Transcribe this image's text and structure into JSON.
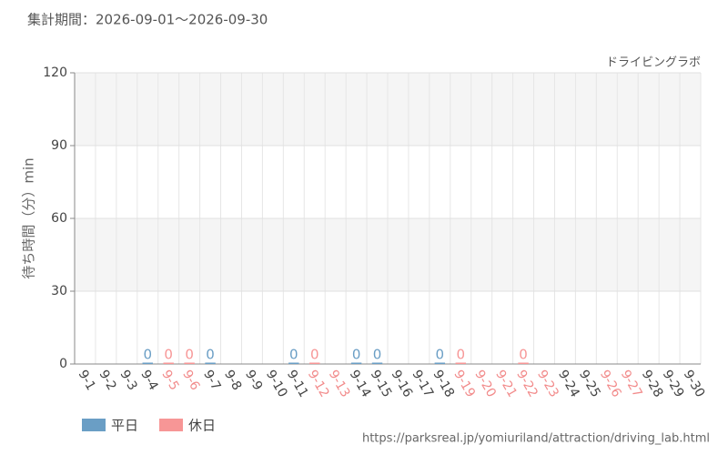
{
  "chart_data": {
    "type": "bar",
    "title": "集計期間：2026-09-01～2026-09-30",
    "subtitle": "ドライビングラボ",
    "y_label": "待ち時間（分）min",
    "source": "https://parksreal.jp/yomiuriland/attraction/driving_lab.html",
    "categories": [
      "9-1",
      "9-2",
      "9-3",
      "9-4",
      "9-5",
      "9-6",
      "9-7",
      "9-8",
      "9-9",
      "9-10",
      "9-11",
      "9-12",
      "9-13",
      "9-14",
      "9-15",
      "9-16",
      "9-17",
      "9-18",
      "9-19",
      "9-20",
      "9-21",
      "9-22",
      "9-23",
      "9-24",
      "9-25",
      "9-26",
      "9-27",
      "9-28",
      "9-29",
      "9-30"
    ],
    "label_colors": [
      "#444",
      "#444",
      "#444",
      "#444",
      "#f28b8b",
      "#f28b8b",
      "#444",
      "#444",
      "#444",
      "#444",
      "#444",
      "#f28b8b",
      "#f28b8b",
      "#444",
      "#444",
      "#444",
      "#444",
      "#444",
      "#f28b8b",
      "#f28b8b",
      "#f28b8b",
      "#f28b8b",
      "#f28b8b",
      "#444",
      "#444",
      "#f28b8b",
      "#f28b8b",
      "#444",
      "#444",
      "#444"
    ],
    "series": [
      {
        "name": "平日",
        "color": "#6a9ec5",
        "values": [
          null,
          null,
          null,
          0,
          null,
          null,
          0,
          null,
          null,
          null,
          0,
          null,
          null,
          0,
          0,
          null,
          null,
          0,
          null,
          null,
          null,
          null,
          null,
          null,
          null,
          null,
          null,
          null,
          null,
          null
        ]
      },
      {
        "name": "休日",
        "color": "#f79696",
        "values": [
          null,
          null,
          null,
          null,
          0,
          0,
          null,
          null,
          null,
          null,
          null,
          0,
          null,
          null,
          null,
          null,
          null,
          null,
          0,
          null,
          null,
          0,
          null,
          null,
          null,
          null,
          null,
          null,
          null,
          null
        ]
      }
    ],
    "ylim": [
      0,
      120
    ],
    "yticks": [
      0,
      30,
      60,
      90,
      120
    ],
    "grid": true
  }
}
